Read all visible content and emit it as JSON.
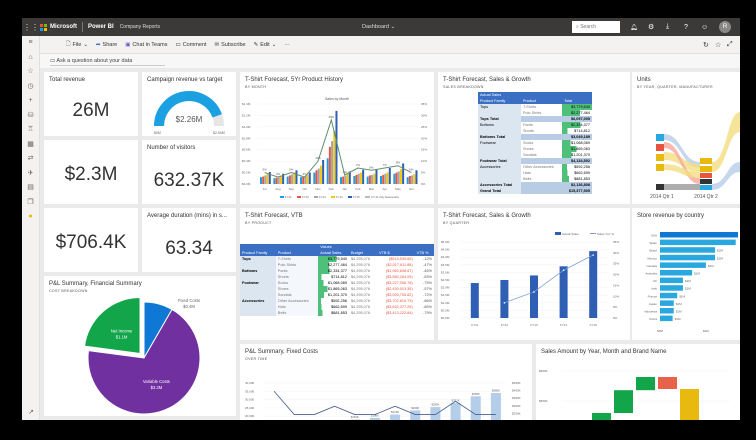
{
  "topbar": {
    "brand": "Microsoft",
    "app": "Power BI",
    "workspace": "Company Reports",
    "view": "Dashboard",
    "search_placeholder": "Search",
    "avatar": "R"
  },
  "toolbar": {
    "file": "File",
    "share": "Share",
    "chat": "Chat in Teams",
    "comment": "Comment",
    "subscribe": "Subscribe",
    "edit": "Edit",
    "more": "···"
  },
  "qa": {
    "placeholder": "Ask a question about your data"
  },
  "kpis": {
    "total_revenue": {
      "title": "Total revenue",
      "value": "26M"
    },
    "untitled1": {
      "value": "$2.3M"
    },
    "visitors": {
      "title": "Number of visitors",
      "value": "632.37K"
    },
    "untitled2": {
      "value": "$706.4K"
    },
    "duration": {
      "title": "Average duration (mins) in s...",
      "value": "63.34"
    }
  },
  "gauge": {
    "title": "Campaign revenue vs target",
    "value": "$2.26M",
    "min": "$0M",
    "max": "$2.54M",
    "fraction": 0.89,
    "color": "#1ba1e2"
  },
  "pie": {
    "title": "P&L Summary, Financial Summary",
    "subtitle": "COST BREAKDOWN",
    "slices": [
      {
        "label": "Fixed Costs",
        "value_label": "$0.4M",
        "value": 0.4,
        "color": "#0f78d4"
      },
      {
        "label": "Variable Costs",
        "value_label": "$3.3M",
        "value": 3.3,
        "color": "#7030a0"
      },
      {
        "label": "Net Income",
        "value_label": "$1.1M",
        "value": 1.1,
        "color": "#13a54a"
      }
    ]
  },
  "chart_data": [
    {
      "id": "history",
      "type": "bar",
      "title": "T-Shirt Forecast, 5Yr Product History",
      "subtitle": "BY MONTH",
      "chart_title": "Sales by Month",
      "categories": [
        "Jul",
        "Aug",
        "Sep",
        "Oct",
        "Nov",
        "Dec",
        "Jan",
        "Feb",
        "Mar",
        "Apr",
        "May",
        "Jun"
      ],
      "ylim": [
        0,
        1.4
      ],
      "yticks": [
        "$0.0M",
        "$0.2M",
        "$0.4M",
        "$0.6M",
        "$0.8M",
        "$1.0M",
        "$1.2M",
        "$1.4M"
      ],
      "y2ticks": [
        "0%",
        "5%",
        "10%",
        "15%",
        "20%",
        "25%",
        "30%",
        "35%"
      ],
      "series": [
        {
          "name": "FY11",
          "color": "#1ba1e2",
          "values": [
            0.12,
            0.1,
            0.13,
            0.12,
            0.2,
            0.45,
            0.12,
            0.14,
            0.13,
            0.14,
            0.18,
            0.12
          ]
        },
        {
          "name": "FY12",
          "color": "#e8543e",
          "values": [
            0.13,
            0.11,
            0.15,
            0.13,
            0.24,
            0.65,
            0.13,
            0.16,
            0.15,
            0.16,
            0.2,
            0.14
          ]
        },
        {
          "name": "FY13",
          "color": "#a6a6a6",
          "values": [
            0.15,
            0.12,
            0.17,
            0.14,
            0.27,
            0.75,
            0.15,
            0.18,
            0.16,
            0.18,
            0.22,
            0.15
          ]
        },
        {
          "name": "FY14",
          "color": "#f2c80f",
          "values": [
            0.18,
            0.14,
            0.2,
            0.16,
            0.32,
            0.93,
            0.18,
            0.2,
            0.18,
            0.2,
            0.26,
            0.17
          ]
        },
        {
          "name": "FY15",
          "color": "#2f5eb5",
          "values": [
            0.21,
            0.18,
            0.24,
            0.2,
            0.42,
            1.28,
            0.22,
            0.25,
            0.25,
            0.28,
            0.36,
            0.24
          ]
        }
      ],
      "line": {
        "name": "CY-11 Avg Seasonality",
        "color": "#5e8f6e",
        "values": [
          5,
          3,
          5,
          3,
          10,
          28,
          4,
          7,
          6,
          7,
          8,
          5
        ],
        "labels": [
          "5%",
          "3%",
          "5%",
          "3%",
          "10%",
          "28%",
          "4%",
          "7%",
          "6%",
          "7%",
          "8%",
          "5%"
        ]
      }
    },
    {
      "id": "growth",
      "type": "bar",
      "title": "T-Shirt Forecast, Sales & Growth",
      "subtitle": "BY QUARTER",
      "categories": [
        "FY11",
        "FY12",
        "FY13",
        "FY14",
        "FY15"
      ],
      "ylim": [
        0,
        5
      ],
      "yticks": [
        "$0.0M",
        "$0.5M",
        "$1.0M",
        "$1.5M",
        "$2.0M",
        "$2.5M",
        "$3.0M",
        "$3.5M",
        "$4.0M",
        "$4.5M",
        "$5.0M"
      ],
      "y2ticks": [
        "0%",
        "5%",
        "10%",
        "15%",
        "20%",
        "25%",
        "30%",
        "35%"
      ],
      "series": [
        {
          "name": "Actual Sales",
          "color": "#2f5eb5",
          "values": [
            2.3,
            2.5,
            2.8,
            3.4,
            4.4
          ]
        }
      ],
      "line": {
        "name": "Sales YoY %",
        "color": "#7f9fd4",
        "values": [
          null,
          7,
          12,
          22,
          29
        ]
      }
    },
    {
      "id": "stores",
      "type": "bar",
      "title": "Store revenue by country",
      "orientation": "horizontal",
      "categories": [
        "USA",
        "Spain",
        "Brazil",
        "Mexico",
        "Canada",
        "Australia",
        "UK",
        "Italy",
        "France",
        "Japan",
        "Indonesia",
        "China"
      ],
      "values": [
        3.4,
        3.3,
        2.4,
        2.4,
        2.0,
        1.4,
        1.0,
        1.0,
        0.75,
        0.6,
        0.6,
        0.55
      ],
      "labels": [
        "",
        "",
        "$2M",
        "$2M",
        "$2M",
        "$1M",
        "$1M",
        "$1M",
        "$1M",
        "$1M",
        "$1M",
        "$1M"
      ],
      "xticks": [
        "$0M",
        "$2M"
      ],
      "color": "#29a8e0",
      "highlight": "#0f78d4"
    },
    {
      "id": "fixed",
      "type": "bar",
      "title": "P&L Summary, Fixed Costs",
      "subtitle": "OVER TIME",
      "yticks": [
        "40,000",
        "35,000",
        "30,000",
        "25,000",
        "20,000"
      ],
      "y2ticks": [
        "$450K",
        "$400K",
        "$350K",
        "$300K",
        "$250K",
        "$200K"
      ],
      "bar_values": [
        null,
        null,
        null,
        null,
        18,
        19,
        21,
        23.5,
        25.5,
        28,
        32,
        34
      ],
      "bar_labels": [
        "",
        "",
        "",
        "",
        "$162K",
        "$186K",
        "$215K",
        "$260K",
        "$289K",
        "$327K",
        "$358K",
        "$385K"
      ],
      "line_values": [
        35,
        21,
        21,
        26,
        21,
        21,
        26,
        21,
        21,
        29,
        21,
        21
      ],
      "bar_color": "#b4cde9",
      "line_color": "#4a5e92"
    },
    {
      "id": "waterfall",
      "type": "bar",
      "title": "Sales Amount by Year, Month and Brand Name",
      "yticks": [
        "$600K",
        "$550K"
      ],
      "steps": [
        {
          "from": 500,
          "to": 530,
          "color": "#13a54a"
        },
        {
          "from": 530,
          "to": 568,
          "color": "#13a54a"
        },
        {
          "from": 568,
          "to": 590,
          "color": "#13a54a"
        },
        {
          "from": 590,
          "to": 570,
          "color": "#e8624a"
        },
        {
          "from": 570,
          "to": 480,
          "color": "#e8b90f"
        }
      ]
    }
  ],
  "breakdown": {
    "title": "T-Shirt Forecast, Sales & Growth",
    "subtitle": "SALES BREAKDOWN",
    "header_top": "Actual Sales",
    "cols": [
      "Product Family",
      "Product",
      "Total"
    ],
    "rows": [
      {
        "f": "Tops",
        "p": "T-Shirts",
        "t": "$3,779,540",
        "v": 3779540
      },
      {
        "f": "",
        "p": "Polo Shirts",
        "t": "$2,277,464",
        "v": 2277464
      },
      {
        "f": "Tops Total",
        "p": "",
        "t": "$6,057,005",
        "total": true
      },
      {
        "f": "Bottoms",
        "p": "Pants",
        "t": "$2,334,377",
        "v": 2334377
      },
      {
        "f": "",
        "p": "Shorts",
        "t": "$714,812",
        "v": 714812
      },
      {
        "f": "Bottoms Total",
        "p": "",
        "t": "$3,049,189",
        "total": true
      },
      {
        "f": "Footwear",
        "p": "Socks",
        "t": "$1,068,069",
        "v": 1068069
      },
      {
        "f": "",
        "p": "Shoes",
        "t": "$1,865,063",
        "v": 1865063
      },
      {
        "f": "",
        "p": "Sandals",
        "t": "$1,201,370",
        "v": 1201370
      },
      {
        "f": "Footwear Total",
        "p": "",
        "t": "$4,134,502",
        "total": true
      },
      {
        "f": "Accessories",
        "p": "Other Accessories",
        "t": "$592,256",
        "v": 592256
      },
      {
        "f": "",
        "p": "Hats",
        "t": "$662,699",
        "v": 662699
      },
      {
        "f": "",
        "p": "Belts",
        "t": "$881,853",
        "v": 881853
      },
      {
        "f": "Accessories Total",
        "p": "",
        "t": "$2,136,808",
        "total": true
      },
      {
        "f": "Grand Total",
        "p": "",
        "t": "$15,377,505",
        "total": true
      }
    ]
  },
  "vtb": {
    "title": "T-Shirt Forecast, VTB",
    "subtitle": "BY PRODUCT",
    "values_header": "Values",
    "cols": [
      "Product Family",
      "Product",
      "Actual Sales",
      "Budget",
      "VTB $",
      "VTB %"
    ],
    "rows": [
      {
        "f": "Tops",
        "p": "T-Shirts",
        "a": "$3,779,540",
        "v": 3779540,
        "b": "$4,295,076",
        "d": "($515,535.66)",
        "pct": "-12%"
      },
      {
        "f": "",
        "p": "Polo Shirts",
        "a": "$2,277,464",
        "v": 2277464,
        "b": "$4,295,076",
        "d": "($2,017,611.88)",
        "pct": "-47%"
      },
      {
        "f": "Bottoms",
        "p": "Pants",
        "a": "$2,334,377",
        "v": 2334377,
        "b": "$4,295,076",
        "d": "($1,960,698.67)",
        "pct": "-46%"
      },
      {
        "f": "",
        "p": "Shorts",
        "a": "$714,812",
        "v": 714812,
        "b": "$4,295,076",
        "d": "($3,580,264.05)",
        "pct": "-83%"
      },
      {
        "f": "Footwear",
        "p": "Socks",
        "a": "$1,068,069",
        "v": 1068069,
        "b": "$4,295,076",
        "d": "($3,227,006.76)",
        "pct": "-75%"
      },
      {
        "f": "",
        "p": "Shoes",
        "a": "$1,865,063",
        "v": 1865063,
        "b": "$4,295,076",
        "d": "($2,430,013.35)",
        "pct": "-57%"
      },
      {
        "f": "",
        "p": "Sandals",
        "a": "$1,201,370",
        "v": 1201370,
        "b": "$4,295,076",
        "d": "($3,093,705.82)",
        "pct": "-72%"
      },
      {
        "f": "Accessories",
        "p": "Other Accessories",
        "a": "$592,256",
        "v": 592256,
        "b": "$4,295,076",
        "d": "($3,702,819.73)",
        "pct": "-86%"
      },
      {
        "f": "",
        "p": "Hats",
        "a": "$662,699",
        "v": 662699,
        "b": "$4,295,076",
        "d": "($3,632,377.25)",
        "pct": "-85%"
      },
      {
        "f": "",
        "p": "Belts",
        "a": "$881,853",
        "v": 881853,
        "b": "$4,295,076",
        "d": "($3,413,222.84)",
        "pct": "-79%"
      }
    ]
  },
  "units": {
    "title": "Units",
    "subtitle": "BY YEAR, QUARTER, MANUFACTURER",
    "labels": [
      "2014 Qtr 1",
      "2014 Qtr 2"
    ],
    "colors": [
      "#29a8e0",
      "#e8543e",
      "#e8b90f",
      "#e8b90f",
      "#333333"
    ]
  },
  "colors": {
    "topbar": "#3b3a39",
    "table_header": "#3a6fc4",
    "databar": "#4fc07a",
    "negative": "#e8543e"
  }
}
